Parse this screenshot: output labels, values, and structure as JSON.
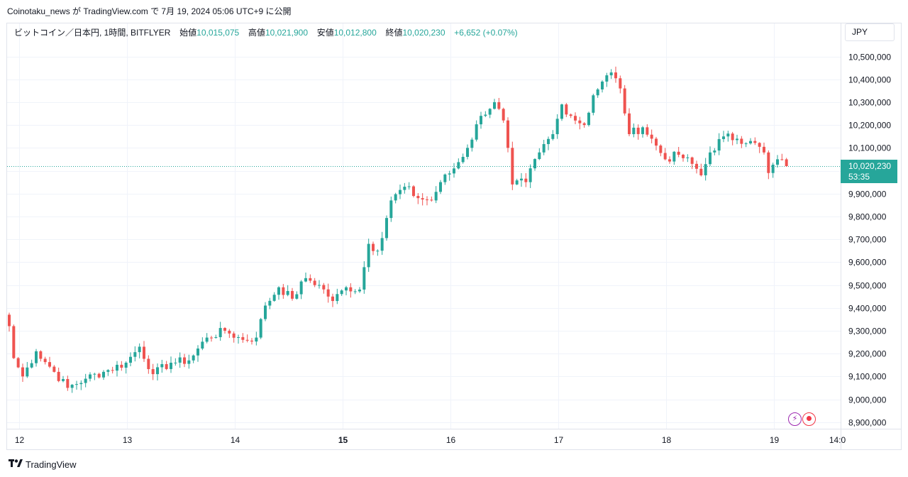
{
  "header": {
    "publish_line": "Coinotaku_news が TradingView.com で 7月 19, 2024 05:06 UTC+9 に公開"
  },
  "legend": {
    "symbol": "ビットコイン／日本円, 1時間, BITFLYER",
    "open_label": "始値",
    "open_value": "10,015,075",
    "high_label": "高値",
    "high_value": "10,021,900",
    "low_label": "安値",
    "low_value": "10,012,800",
    "close_label": "終値",
    "close_value": "10,020,230",
    "change": "+6,652 (+0.07%)"
  },
  "currency_button": "JPY",
  "last_price": {
    "price": "10,020,230",
    "countdown": "53:35"
  },
  "footer": {
    "brand": "TradingView"
  },
  "colors": {
    "up": "#26a69a",
    "down": "#ef5350",
    "grid": "#f0f3fa",
    "text": "#131722",
    "spark_icon": "#9c27b0",
    "record_icon": "#f23645"
  },
  "icons": [
    "lightning-icon",
    "record-icon",
    "tradingview-logo-icon"
  ],
  "chart_data": {
    "type": "candlestick",
    "title": "",
    "timeframe": "1h",
    "xlabel": "",
    "ylabel": "",
    "x_ticks": [
      "12",
      "13",
      "14",
      "15",
      "16",
      "17",
      "18",
      "19",
      "14:0"
    ],
    "y_ticks": [
      "8,900,000",
      "9,000,000",
      "9,100,000",
      "9,200,000",
      "9,300,000",
      "9,400,000",
      "9,500,000",
      "9,600,000",
      "9,700,000",
      "9,800,000",
      "9,900,000",
      "10,000,000",
      "10,100,000",
      "10,200,000",
      "10,300,000",
      "10,400,000",
      "10,500,000"
    ],
    "ylim": [
      8880000,
      10560000
    ],
    "grid": true,
    "last_price": 10020230,
    "key_closes": [
      {
        "x": "12 00:00",
        "y": 9320000
      },
      {
        "x": "12 01:00",
        "y": 9180000
      },
      {
        "x": "12 03:00",
        "y": 9100000
      },
      {
        "x": "12 06:00",
        "y": 9210000
      },
      {
        "x": "12 10:00",
        "y": 9120000
      },
      {
        "x": "12 13:00",
        "y": 9050000
      },
      {
        "x": "12 17:00",
        "y": 9090000
      },
      {
        "x": "12 21:00",
        "y": 9120000
      },
      {
        "x": "13 02:00",
        "y": 9160000
      },
      {
        "x": "13 05:00",
        "y": 9230000
      },
      {
        "x": "13 08:00",
        "y": 9110000
      },
      {
        "x": "13 12:00",
        "y": 9160000
      },
      {
        "x": "13 16:00",
        "y": 9170000
      },
      {
        "x": "13 20:00",
        "y": 9270000
      },
      {
        "x": "14 00:00",
        "y": 9300000
      },
      {
        "x": "14 04:00",
        "y": 9260000
      },
      {
        "x": "14 07:00",
        "y": 9270000
      },
      {
        "x": "14 09:00",
        "y": 9410000
      },
      {
        "x": "14 12:00",
        "y": 9490000
      },
      {
        "x": "14 15:00",
        "y": 9440000
      },
      {
        "x": "14 18:00",
        "y": 9530000
      },
      {
        "x": "14 21:00",
        "y": 9500000
      },
      {
        "x": "15 00:00",
        "y": 9430000
      },
      {
        "x": "15 03:00",
        "y": 9490000
      },
      {
        "x": "15 06:00",
        "y": 9480000
      },
      {
        "x": "15 08:00",
        "y": 9680000
      },
      {
        "x": "15 10:00",
        "y": 9650000
      },
      {
        "x": "15 13:00",
        "y": 9870000
      },
      {
        "x": "15 16:00",
        "y": 9930000
      },
      {
        "x": "15 19:00",
        "y": 9880000
      },
      {
        "x": "15 22:00",
        "y": 9870000
      },
      {
        "x": "16 00:00",
        "y": 9950000
      },
      {
        "x": "16 03:00",
        "y": 10010000
      },
      {
        "x": "16 06:00",
        "y": 10100000
      },
      {
        "x": "16 09:00",
        "y": 10240000
      },
      {
        "x": "16 12:00",
        "y": 10300000
      },
      {
        "x": "16 14:00",
        "y": 10220000
      },
      {
        "x": "16 15:00",
        "y": 10100000
      },
      {
        "x": "16 16:00",
        "y": 9940000
      },
      {
        "x": "16 19:00",
        "y": 9950000
      },
      {
        "x": "16 22:00",
        "y": 10080000
      },
      {
        "x": "17 01:00",
        "y": 10160000
      },
      {
        "x": "17 03:00",
        "y": 10290000
      },
      {
        "x": "17 05:00",
        "y": 10240000
      },
      {
        "x": "17 08:00",
        "y": 10200000
      },
      {
        "x": "17 10:00",
        "y": 10330000
      },
      {
        "x": "17 12:00",
        "y": 10390000
      },
      {
        "x": "17 14:00",
        "y": 10430000
      },
      {
        "x": "17 16:00",
        "y": 10360000
      },
      {
        "x": "17 18:00",
        "y": 10160000
      },
      {
        "x": "17 21:00",
        "y": 10190000
      },
      {
        "x": "18 00:00",
        "y": 10110000
      },
      {
        "x": "18 02:00",
        "y": 10050000
      },
      {
        "x": "18 05:00",
        "y": 10070000
      },
      {
        "x": "18 08:00",
        "y": 10030000
      },
      {
        "x": "18 10:00",
        "y": 9980000
      },
      {
        "x": "18 12:00",
        "y": 10080000
      },
      {
        "x": "18 15:00",
        "y": 10150000
      },
      {
        "x": "18 18:00",
        "y": 10140000
      },
      {
        "x": "18 21:00",
        "y": 10130000
      },
      {
        "x": "19 00:00",
        "y": 10080000
      },
      {
        "x": "19 01:00",
        "y": 9990000
      },
      {
        "x": "19 03:00",
        "y": 10050000
      },
      {
        "x": "19 05:00",
        "y": 10020230
      }
    ]
  }
}
